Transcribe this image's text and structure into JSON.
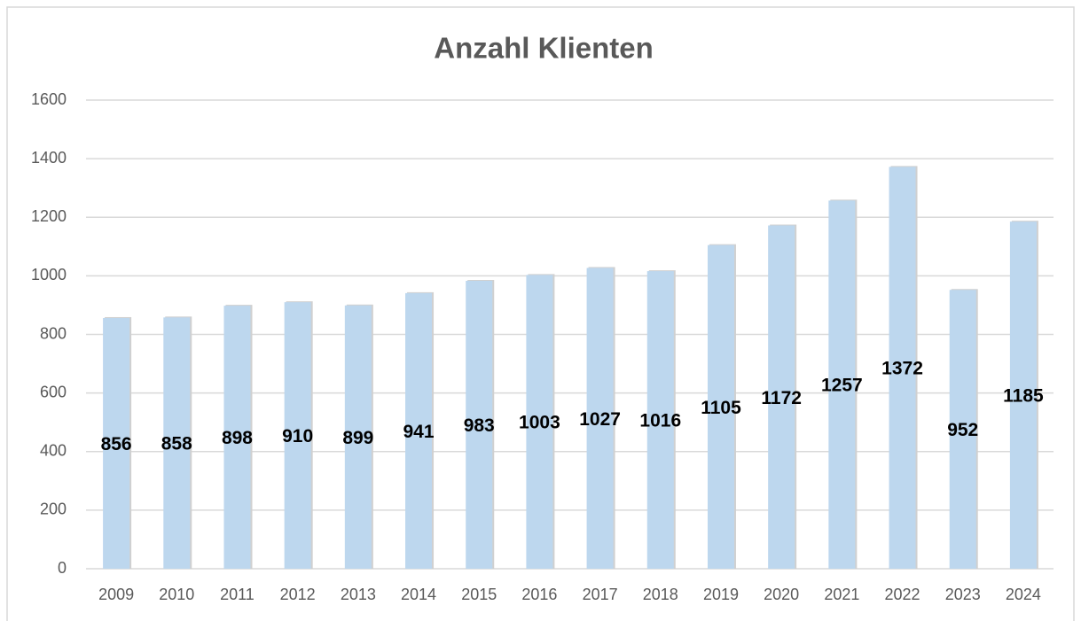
{
  "chart_data": {
    "type": "bar",
    "title": "Anzahl Klienten",
    "categories": [
      "2009",
      "2010",
      "2011",
      "2012",
      "2013",
      "2014",
      "2015",
      "2016",
      "2017",
      "2018",
      "2019",
      "2020",
      "2021",
      "2022",
      "2023",
      "2024"
    ],
    "values": [
      856,
      858,
      898,
      910,
      899,
      941,
      983,
      1003,
      1027,
      1016,
      1105,
      1172,
      1257,
      1372,
      952,
      1185
    ],
    "color": "#bdd7ee",
    "ylim": [
      0,
      1600
    ],
    "yticks": [
      0,
      200,
      400,
      600,
      800,
      1000,
      1200,
      1400,
      1600
    ],
    "grid": true
  }
}
